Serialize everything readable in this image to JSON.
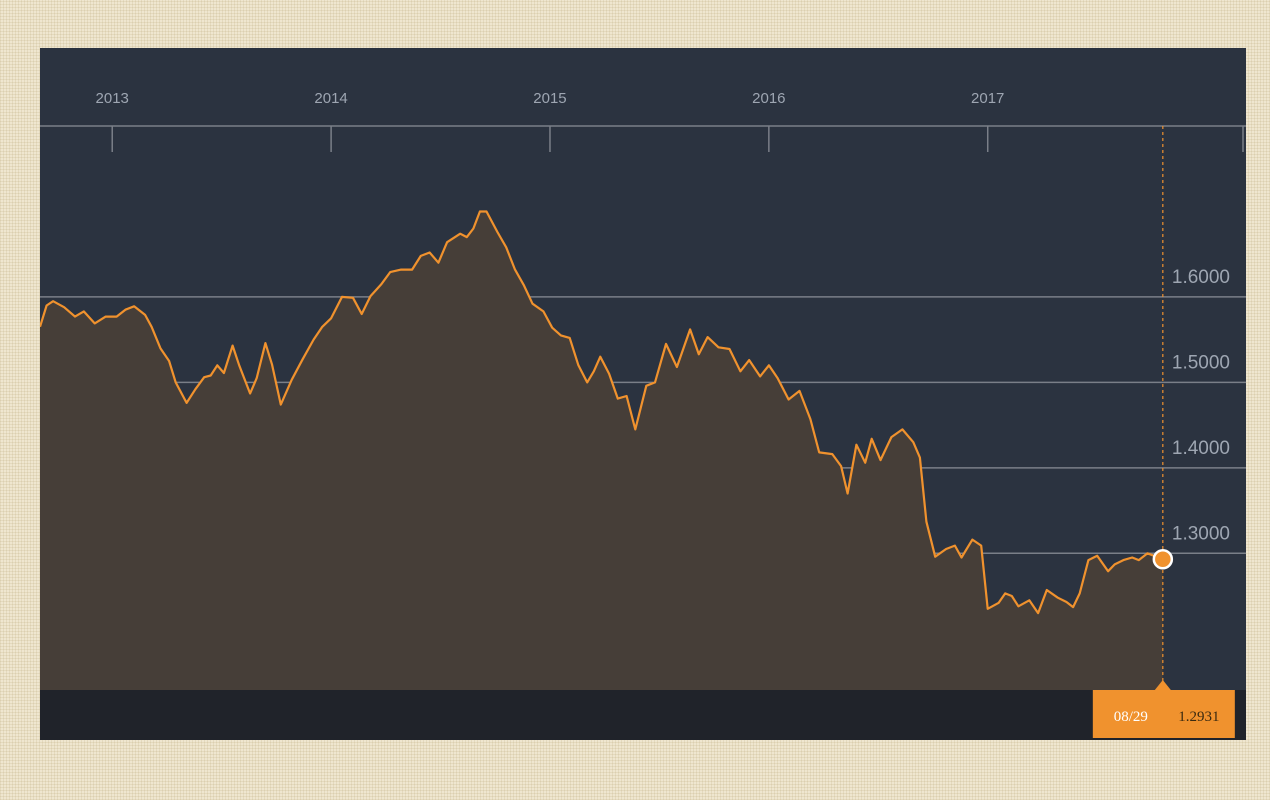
{
  "colors": {
    "background": "#2b3340",
    "line": "#f0922e",
    "area": "#463e38",
    "grid": "#7a7f88",
    "bottom_band": "#20232a",
    "tooltip": "#f0922e",
    "marker": "#f0922e"
  },
  "chart_data": {
    "type": "line",
    "title": "",
    "xlabel": "",
    "ylabel": "",
    "x_ticks": [
      "2013",
      "2014",
      "2015",
      "2016",
      "2017"
    ],
    "y_ticks": [
      "1.6000",
      "1.5000",
      "1.4000",
      "1.3000"
    ],
    "xlim": [
      2012.67,
      2018.18
    ],
    "ylim": [
      1.14,
      1.8
    ],
    "grid": true,
    "area_fill": true,
    "series": [
      {
        "name": "",
        "points": [
          [
            2012.67,
            1.565
          ],
          [
            2012.7,
            1.59
          ],
          [
            2012.73,
            1.595
          ],
          [
            2012.78,
            1.588
          ],
          [
            2012.83,
            1.577
          ],
          [
            2012.87,
            1.583
          ],
          [
            2012.92,
            1.569
          ],
          [
            2012.97,
            1.577
          ],
          [
            2013.02,
            1.577
          ],
          [
            2013.06,
            1.585
          ],
          [
            2013.1,
            1.589
          ],
          [
            2013.15,
            1.579
          ],
          [
            2013.18,
            1.565
          ],
          [
            2013.22,
            1.54
          ],
          [
            2013.26,
            1.525
          ],
          [
            2013.29,
            1.5
          ],
          [
            2013.34,
            1.476
          ],
          [
            2013.38,
            1.492
          ],
          [
            2013.42,
            1.506
          ],
          [
            2013.45,
            1.508
          ],
          [
            2013.48,
            1.52
          ],
          [
            2013.51,
            1.511
          ],
          [
            2013.55,
            1.543
          ],
          [
            2013.58,
            1.52
          ],
          [
            2013.63,
            1.487
          ],
          [
            2013.66,
            1.505
          ],
          [
            2013.7,
            1.546
          ],
          [
            2013.73,
            1.521
          ],
          [
            2013.77,
            1.474
          ],
          [
            2013.82,
            1.503
          ],
          [
            2013.87,
            1.527
          ],
          [
            2013.92,
            1.55
          ],
          [
            2013.96,
            1.565
          ],
          [
            2014.0,
            1.575
          ],
          [
            2014.05,
            1.6
          ],
          [
            2014.1,
            1.599
          ],
          [
            2014.14,
            1.58
          ],
          [
            2014.18,
            1.601
          ],
          [
            2014.23,
            1.615
          ],
          [
            2014.27,
            1.629
          ],
          [
            2014.32,
            1.632
          ],
          [
            2014.37,
            1.632
          ],
          [
            2014.41,
            1.648
          ],
          [
            2014.45,
            1.652
          ],
          [
            2014.49,
            1.64
          ],
          [
            2014.53,
            1.664
          ],
          [
            2014.59,
            1.674
          ],
          [
            2014.62,
            1.67
          ],
          [
            2014.65,
            1.68
          ],
          [
            2014.68,
            1.7
          ],
          [
            2014.71,
            1.7
          ],
          [
            2014.76,
            1.676
          ],
          [
            2014.8,
            1.658
          ],
          [
            2014.84,
            1.632
          ],
          [
            2014.88,
            1.614
          ],
          [
            2014.92,
            1.592
          ],
          [
            2014.97,
            1.583
          ],
          [
            2015.01,
            1.564
          ],
          [
            2015.05,
            1.555
          ],
          [
            2015.09,
            1.552
          ],
          [
            2015.13,
            1.52
          ],
          [
            2015.17,
            1.5
          ],
          [
            2015.2,
            1.513
          ],
          [
            2015.23,
            1.53
          ],
          [
            2015.27,
            1.51
          ],
          [
            2015.31,
            1.481
          ],
          [
            2015.35,
            1.484
          ],
          [
            2015.39,
            1.445
          ],
          [
            2015.44,
            1.496
          ],
          [
            2015.48,
            1.5
          ],
          [
            2015.53,
            1.545
          ],
          [
            2015.58,
            1.518
          ],
          [
            2015.64,
            1.562
          ],
          [
            2015.68,
            1.533
          ],
          [
            2015.72,
            1.553
          ],
          [
            2015.77,
            1.541
          ],
          [
            2015.82,
            1.539
          ],
          [
            2015.87,
            1.513
          ],
          [
            2015.91,
            1.526
          ],
          [
            2015.96,
            1.507
          ],
          [
            2016.0,
            1.52
          ],
          [
            2016.04,
            1.505
          ],
          [
            2016.09,
            1.48
          ],
          [
            2016.14,
            1.49
          ],
          [
            2016.19,
            1.457
          ],
          [
            2016.23,
            1.418
          ],
          [
            2016.29,
            1.416
          ],
          [
            2016.33,
            1.402
          ],
          [
            2016.36,
            1.37
          ],
          [
            2016.4,
            1.427
          ],
          [
            2016.44,
            1.406
          ],
          [
            2016.47,
            1.434
          ],
          [
            2016.51,
            1.409
          ],
          [
            2016.56,
            1.436
          ],
          [
            2016.61,
            1.445
          ],
          [
            2016.66,
            1.43
          ],
          [
            2016.69,
            1.412
          ],
          [
            2016.72,
            1.337
          ],
          [
            2016.76,
            1.296
          ],
          [
            2016.81,
            1.305
          ],
          [
            2016.85,
            1.309
          ],
          [
            2016.88,
            1.295
          ],
          [
            2016.93,
            1.316
          ],
          [
            2016.97,
            1.309
          ],
          [
            2017.0,
            1.235
          ],
          [
            2017.05,
            1.242
          ],
          [
            2017.08,
            1.253
          ],
          [
            2017.11,
            1.25
          ],
          [
            2017.14,
            1.238
          ],
          [
            2017.19,
            1.245
          ],
          [
            2017.23,
            1.23
          ],
          [
            2017.27,
            1.257
          ],
          [
            2017.32,
            1.248
          ],
          [
            2017.36,
            1.243
          ],
          [
            2017.39,
            1.237
          ],
          [
            2017.42,
            1.253
          ],
          [
            2017.46,
            1.292
          ],
          [
            2017.5,
            1.297
          ],
          [
            2017.55,
            1.279
          ],
          [
            2017.58,
            1.287
          ],
          [
            2017.62,
            1.292
          ],
          [
            2017.66,
            1.295
          ],
          [
            2017.69,
            1.292
          ],
          [
            2017.73,
            1.3
          ],
          [
            2017.77,
            1.296
          ],
          [
            2017.8,
            1.293
          ]
        ]
      }
    ],
    "tooltip": {
      "date": "08/29",
      "value": "1.2931"
    }
  }
}
